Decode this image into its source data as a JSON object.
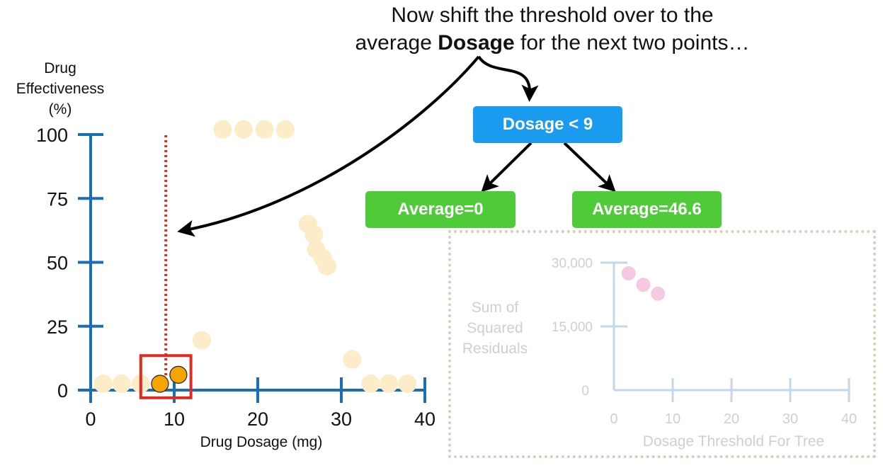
{
  "caption": {
    "line1": "Now shift the threshold over to the",
    "line2_before": "average",
    "line2_bold": "Dosage",
    "line2_after": "for the next two points…"
  },
  "tree": {
    "root": "Dosage < 9",
    "left": "Average=0",
    "right": "Average=46.6"
  },
  "colors": {
    "axis": "#1a6eb3",
    "threshold": "#e02b20",
    "faded_point": "#fcecc8",
    "highlight_point": "#f5a500",
    "highlight_box": "#e02b20",
    "inset_axis": "#c3d7ea",
    "inset_text": "#cfcfcf",
    "inset_point": "#f6c8e2"
  },
  "chart_data": [
    {
      "type": "scatter",
      "title": "",
      "xlabel": "Drug Dosage (mg)",
      "ylabel": "Drug Effectiveness (%)",
      "ylabel_lines": [
        "Drug",
        "Effectiveness",
        "(%)"
      ],
      "xlim": [
        0,
        40
      ],
      "ylim": [
        0,
        100
      ],
      "xticks": [
        0,
        10,
        20,
        30,
        40
      ],
      "yticks": [
        0,
        25,
        50,
        75,
        100
      ],
      "threshold": 9,
      "points": [
        {
          "x": 1.5,
          "y": 2.5
        },
        {
          "x": 3.7,
          "y": 2.5
        },
        {
          "x": 6.0,
          "y": 2.5
        },
        {
          "x": 8.3,
          "y": 2.5,
          "highlight": true
        },
        {
          "x": 10.5,
          "y": 6,
          "highlight": true
        },
        {
          "x": 13.3,
          "y": 19.5
        },
        {
          "x": 15.8,
          "y": 102
        },
        {
          "x": 18.3,
          "y": 102
        },
        {
          "x": 20.8,
          "y": 102
        },
        {
          "x": 23.3,
          "y": 102
        },
        {
          "x": 26,
          "y": 65
        },
        {
          "x": 26.7,
          "y": 61
        },
        {
          "x": 27,
          "y": 55
        },
        {
          "x": 27.8,
          "y": 51.5
        },
        {
          "x": 28.3,
          "y": 48.5
        },
        {
          "x": 31.3,
          "y": 12
        },
        {
          "x": 33.5,
          "y": 2.5
        },
        {
          "x": 35.7,
          "y": 2.5
        },
        {
          "x": 37.9,
          "y": 2.5
        }
      ],
      "highlight_box": {
        "x": [
          6,
          12
        ],
        "y": [
          -3,
          13.5
        ]
      }
    },
    {
      "type": "scatter",
      "title": "",
      "xlabel": "Dosage Threshold For Tree",
      "ylabel": "Sum of Squared Residuals",
      "ylabel_lines": [
        "Sum",
        "of",
        "Squared",
        "Residuals"
      ],
      "xlim": [
        0,
        40
      ],
      "ylim": [
        0,
        30000
      ],
      "xticks": [
        0,
        10,
        20,
        30,
        40
      ],
      "yticks": [
        0,
        15000,
        30000
      ],
      "ytick_labels": [
        "0",
        "15,000",
        "30,000"
      ],
      "points": [
        {
          "x": 2.5,
          "y": 27500
        },
        {
          "x": 5,
          "y": 24800
        },
        {
          "x": 7.5,
          "y": 22700
        }
      ]
    }
  ]
}
